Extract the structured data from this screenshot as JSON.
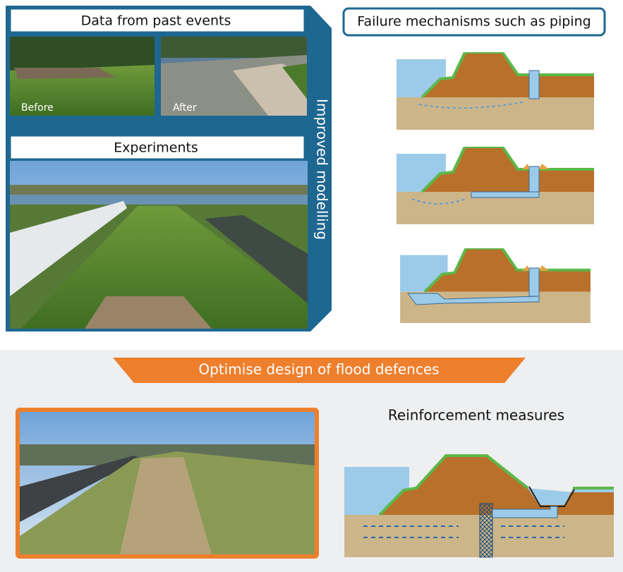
{
  "panels": {
    "past_events": {
      "title": "Data from past events",
      "before": "Before",
      "after": "After"
    },
    "experiments": {
      "title": "Experiments"
    },
    "side_label": "Improved modelling",
    "failure": {
      "title": "Failure mechanisms such as piping"
    },
    "banner": "Optimise design of flood defences",
    "reinforcement": {
      "title": "Reinforcement measures"
    }
  }
}
